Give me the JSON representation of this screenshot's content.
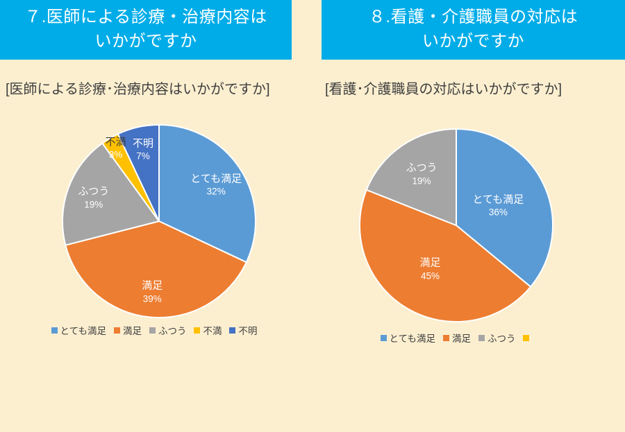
{
  "page": {
    "background_color": "#FCEFD0",
    "header_background_color": "#00ACE8",
    "header_text_color": "#FFFFFF"
  },
  "chart_data": [
    {
      "type": "pie",
      "header": "７.医師による診療・治療内容は\nいかがですか",
      "title": "[医師による診療･治療内容はいかがですか]",
      "legend_position": "bottom",
      "categories": [
        "とても満足",
        "満足",
        "ふつう",
        "不満",
        "不明"
      ],
      "values": [
        32,
        39,
        19,
        3,
        7
      ],
      "slices": [
        {
          "label": "とても満足",
          "value": 32,
          "pct_text": "32%",
          "color": "#5B9BD5",
          "label_r": 0.7,
          "text_color": "#FFFFFF"
        },
        {
          "label": "満足",
          "value": 39,
          "pct_text": "39%",
          "color": "#ED7D31",
          "label_r": 0.74,
          "text_color": "#FFFFFF"
        },
        {
          "label": "ふつう",
          "value": 19,
          "pct_text": "19%",
          "color": "#A5A5A5",
          "label_r": 0.72,
          "text_color": "#FFFFFF"
        },
        {
          "label": "不満",
          "value": 3,
          "pct_text": "3%",
          "color": "#FFC000",
          "label_r": 0.88,
          "text_color": "#FFFFFF",
          "name_color": "#3B3B3B"
        },
        {
          "label": "不明",
          "value": 7,
          "pct_text": "7%",
          "color": "#4472C4",
          "label_r": 0.76,
          "text_color": "#FFFFFF"
        }
      ],
      "legend": [
        {
          "label": "とても満足",
          "color": "#5B9BD5"
        },
        {
          "label": "満足",
          "color": "#ED7D31"
        },
        {
          "label": "ふつう",
          "color": "#A5A5A5"
        },
        {
          "label": "不満",
          "color": "#FFC000"
        },
        {
          "label": "不明",
          "color": "#4472C4"
        }
      ]
    },
    {
      "type": "pie",
      "header": "８.看護・介護職員の対応は\nいかがですか",
      "title": "[看護･介護職員の対応はいかがですか]",
      "legend_position": "bottom",
      "categories": [
        "とても満足",
        "満足",
        "ふつう",
        ""
      ],
      "values": [
        36,
        45,
        19,
        0
      ],
      "slices": [
        {
          "label": "とても満足",
          "value": 36,
          "pct_text": "36%",
          "color": "#5B9BD5",
          "label_r": 0.48,
          "text_color": "#FFFFFF"
        },
        {
          "label": "満足",
          "value": 45,
          "pct_text": "45%",
          "color": "#ED7D31",
          "label_r": 0.53,
          "text_color": "#FFFFFF"
        },
        {
          "label": "ふつう",
          "value": 19,
          "pct_text": "19%",
          "color": "#A5A5A5",
          "label_r": 0.64,
          "text_color": "#FFFFFF"
        },
        {
          "label": "",
          "value": 0,
          "pct_text": "",
          "color": "#FFC000",
          "label_r": 0.8,
          "text_color": "#FFFFFF"
        }
      ],
      "legend": [
        {
          "label": "とても満足",
          "color": "#5B9BD5"
        },
        {
          "label": "満足",
          "color": "#ED7D31"
        },
        {
          "label": "ふつう",
          "color": "#A5A5A5"
        },
        {
          "label": "",
          "color": "#FFC000"
        }
      ]
    }
  ]
}
